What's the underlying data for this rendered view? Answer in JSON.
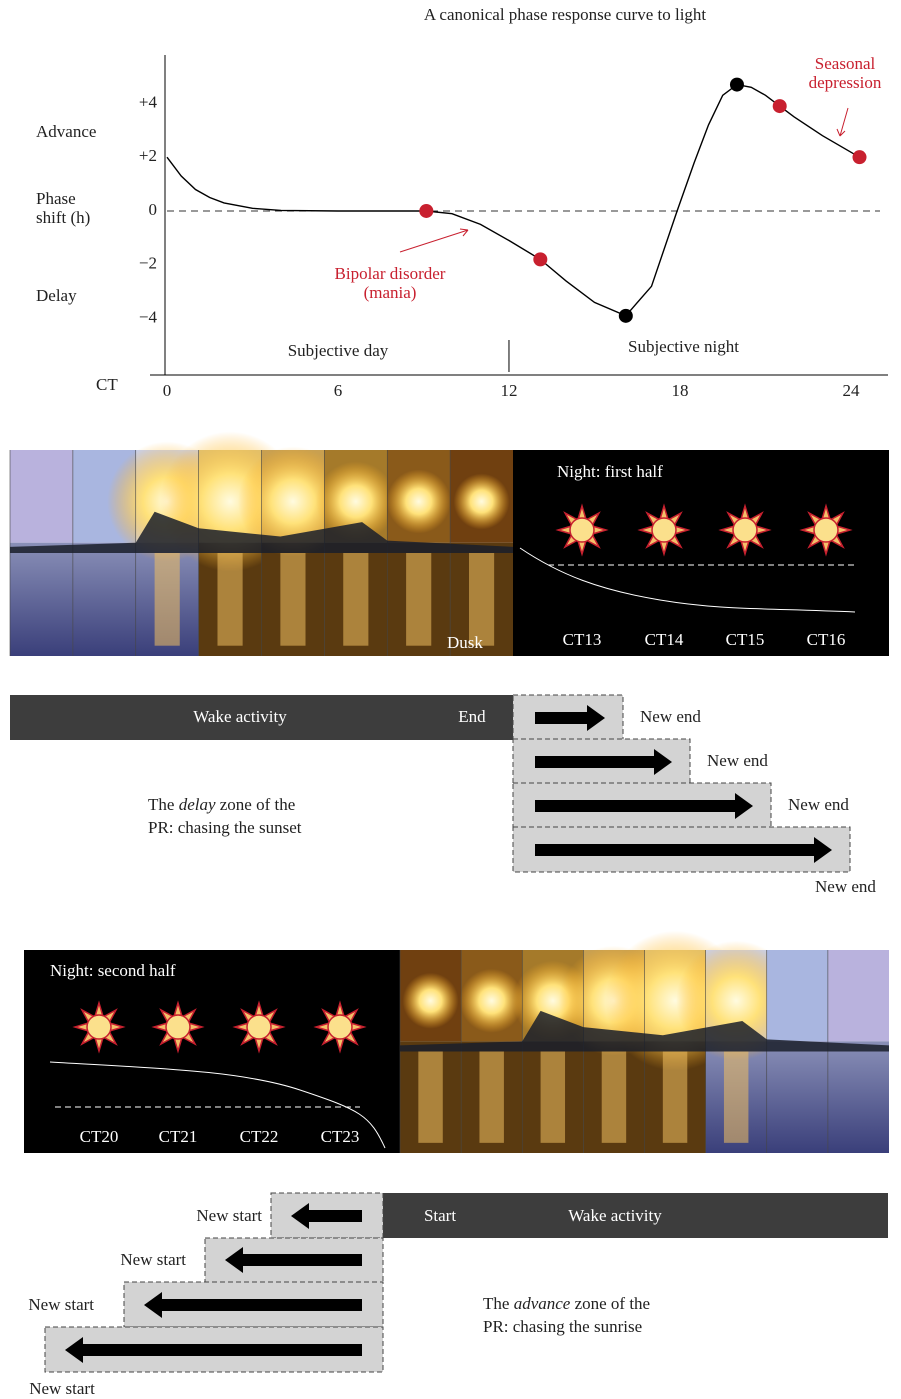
{
  "chart_data": {
    "type": "line",
    "title": "A canonical phase response curve to light",
    "x_label": "CT",
    "y_label_lines": [
      "Phase",
      "shift (h)"
    ],
    "advance_label": "Advance",
    "delay_label": "Delay",
    "xlim": [
      0,
      25.3
    ],
    "ylim": [
      -6.1,
      5.8
    ],
    "xticks": [
      0,
      6,
      12,
      18,
      24
    ],
    "yticks": [
      {
        "value": 4,
        "label": "+4"
      },
      {
        "value": 2,
        "label": "+2"
      },
      0,
      {
        "value": -2,
        "label": "−2"
      },
      {
        "value": -4,
        "label": "−4"
      }
    ],
    "zero_line": true,
    "region_divider": 12,
    "regions": [
      {
        "label": "Subjective day"
      },
      {
        "label": "Subjective night"
      }
    ],
    "curve": {
      "color": "#000000",
      "x": [
        0,
        0.5,
        1,
        1.5,
        2,
        3,
        4,
        6,
        8,
        9.1,
        10,
        11,
        12,
        13.1,
        14,
        15,
        16.1,
        17,
        17.9,
        18.5,
        19,
        19.5,
        20,
        20.5,
        21,
        21.5,
        22,
        23,
        24.3
      ],
      "values": [
        2,
        1.3,
        0.8,
        0.5,
        0.3,
        0.1,
        0.02,
        0,
        0,
        0,
        -0.1,
        -0.5,
        -1.1,
        -1.8,
        -2.6,
        -3.4,
        -3.9,
        -2.8,
        0,
        1.8,
        3.2,
        4.3,
        4.7,
        4.6,
        4.3,
        3.9,
        3.5,
        2.8,
        2.0
      ]
    },
    "points": {
      "x": [
        9.1,
        13.1,
        16.1,
        20,
        21.5,
        24.3
      ],
      "values": [
        0,
        -1.8,
        -3.9,
        4.7,
        3.9,
        2.0
      ],
      "colors": [
        "#c8202f",
        "#c8202f",
        "#000000",
        "#000000",
        "#c8202f",
        "#c8202f"
      ]
    },
    "annotations": [
      {
        "text_lines": [
          "Bipolar disorder",
          "(mania)"
        ],
        "color": "#c8202f"
      },
      {
        "text_lines": [
          "Seasonal",
          "depression"
        ],
        "color": "#c8202f"
      }
    ]
  },
  "dusk_panel": {
    "dusk_label": "Dusk",
    "night_title": "Night: first half",
    "ct_labels": [
      "CT13",
      "CT14",
      "CT15",
      "CT16"
    ]
  },
  "delay_diagram": {
    "bar_label": "Wake activity",
    "end_label": "End",
    "new_labels": [
      "New end",
      "New end",
      "New end",
      "New end"
    ],
    "note": {
      "line1": [
        "The",
        "delay",
        "zone of the"
      ],
      "line2": "PR: chasing the sunset"
    }
  },
  "dawn_panel": {
    "night_title": "Night: second half",
    "ct_labels": [
      "CT20",
      "CT21",
      "CT22",
      "CT23"
    ]
  },
  "advance_diagram": {
    "start_label": "Start",
    "bar_label": "Wake activity",
    "new_labels": [
      "New start",
      "New start",
      "New start",
      "New start"
    ],
    "note": {
      "line1": [
        "The",
        "advance",
        "zone of the"
      ],
      "line2": "PR: chasing the sunrise"
    }
  }
}
